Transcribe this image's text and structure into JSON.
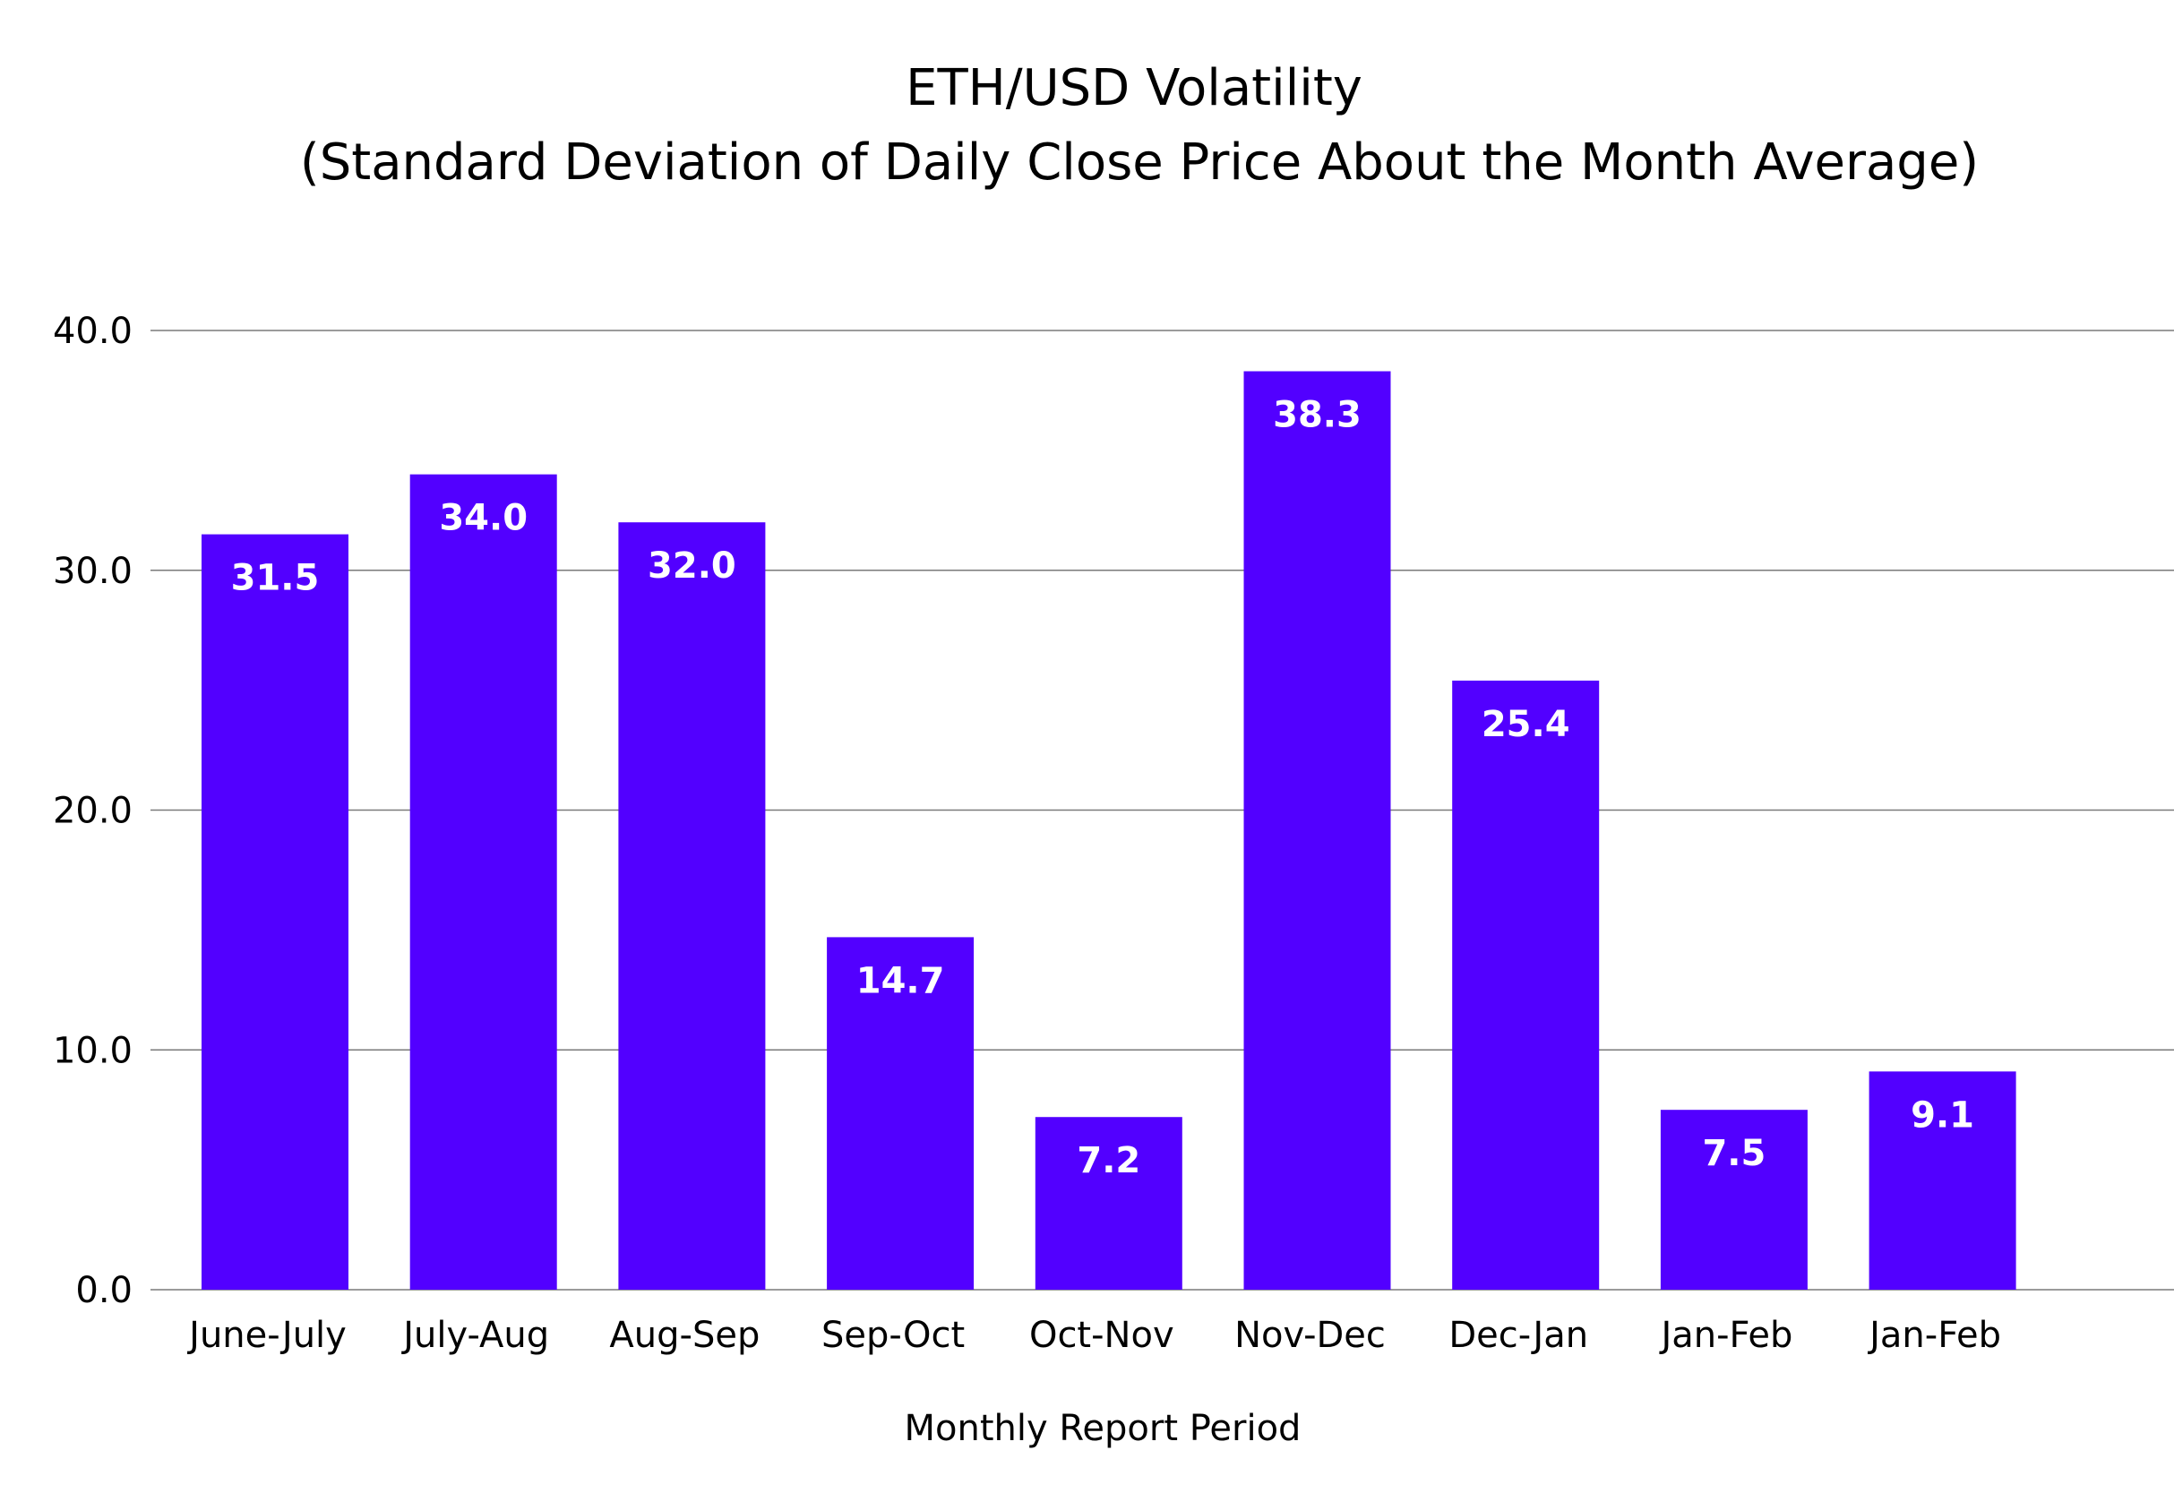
{
  "chart_data": {
    "type": "bar",
    "title": "ETH/USD Volatility",
    "subtitle": "(Standard Deviation of Daily Close Price About the Month Average)",
    "xlabel": "Monthly Report Period",
    "ylabel": "",
    "categories": [
      "June-July",
      "July-Aug",
      "Aug-Sep",
      "Sep-Oct",
      "Oct-Nov",
      "Nov-Dec",
      "Dec-Jan",
      "Jan-Feb",
      "Jan-Feb"
    ],
    "values": [
      31.5,
      34.0,
      32.0,
      14.7,
      7.2,
      38.3,
      25.4,
      7.5,
      9.1
    ],
    "value_labels": [
      "31.5",
      "34.0",
      "32.0",
      "14.7",
      "7.2",
      "38.3",
      "25.4",
      "7.5",
      "9.1"
    ],
    "ylim": [
      0,
      40
    ],
    "yticks": [
      "0.0",
      "10.0",
      "20.0",
      "30.0",
      "40.0"
    ],
    "grid": true,
    "legend": "none",
    "bar_color": "#5200ff"
  }
}
